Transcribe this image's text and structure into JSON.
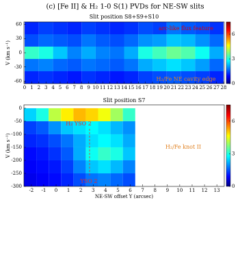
{
  "title": "(c) [Fe II] & H₂ 1-0 S(1) PVDs for NE-SW slits",
  "chart_data": [
    {
      "type": "heatmap",
      "title": "Slit position S8+S9+S10",
      "ylabel": "V (km s⁻¹)",
      "x": [
        1,
        3,
        5,
        7,
        9,
        11,
        13,
        15,
        17,
        19,
        21,
        23,
        25,
        27
      ],
      "y": [
        52,
        26,
        0,
        -26,
        -52
      ],
      "z": [
        [
          1.2,
          1.4,
          1.3,
          1.2,
          1.4,
          1.3,
          1.2,
          1.3,
          1.5,
          1.4,
          1.8,
          1.6,
          1.5,
          1.3
        ],
        [
          1.5,
          1.7,
          1.6,
          1.5,
          1.8,
          1.6,
          1.5,
          1.7,
          2.0,
          2.1,
          2.4,
          2.3,
          2.0,
          1.7
        ],
        [
          3.2,
          3.0,
          2.4,
          1.9,
          2.2,
          1.9,
          1.8,
          2.2,
          3.0,
          3.3,
          3.6,
          3.4,
          2.9,
          2.2
        ],
        [
          1.8,
          1.9,
          1.7,
          1.6,
          1.8,
          1.7,
          1.6,
          1.8,
          2.2,
          2.4,
          2.6,
          2.4,
          2.1,
          1.7
        ],
        [
          1.2,
          1.3,
          1.2,
          1.1,
          1.3,
          1.2,
          1.1,
          1.2,
          1.4,
          1.5,
          1.6,
          1.5,
          1.4,
          1.2
        ]
      ],
      "cell": [
        2,
        26
      ],
      "xlim": [
        -0.1,
        28.1
      ],
      "ylim": [
        -65,
        65
      ],
      "xticks": [
        0,
        1,
        2,
        3,
        4,
        5,
        6,
        7,
        8,
        9,
        10,
        11,
        12,
        13,
        14,
        15,
        16,
        17,
        18,
        19,
        20,
        21,
        22,
        23,
        24,
        25,
        26,
        27,
        28
      ],
      "yticks": [
        60,
        30,
        0,
        -30,
        -60
      ],
      "clim": [
        0,
        7.5
      ],
      "cticks": [
        0,
        3,
        6
      ],
      "annotations": [
        "arc-like flux feature",
        "H₂/Fe NE cavity edge"
      ]
    },
    {
      "type": "heatmap",
      "title": "Slit position S7",
      "ylabel": "V (km s⁻¹)",
      "xlabel": "NE-SW offset Y (arcsec)",
      "x": [
        -2.1,
        -1.1,
        -0.1,
        0.9,
        1.9,
        2.9,
        3.9,
        4.9,
        5.9
      ],
      "y": [
        -25,
        -75,
        -125,
        -175,
        -225,
        -275
      ],
      "z": [
        [
          2.5,
          3.0,
          4.2,
          4.8,
          5.2,
          5.0,
          4.6,
          4.0,
          3.2
        ],
        [
          1.4,
          1.6,
          2.0,
          2.4,
          2.6,
          2.8,
          2.6,
          2.3,
          2.0
        ],
        [
          1.2,
          1.3,
          1.5,
          1.8,
          2.2,
          2.6,
          2.8,
          2.6,
          2.2
        ],
        [
          1.0,
          1.1,
          1.3,
          1.6,
          2.2,
          2.9,
          3.2,
          3.0,
          2.4
        ],
        [
          0.9,
          1.0,
          1.1,
          1.4,
          1.9,
          2.4,
          2.6,
          2.3,
          1.9
        ],
        [
          0.8,
          0.9,
          1.0,
          1.2,
          1.5,
          1.8,
          1.9,
          1.7,
          1.5
        ]
      ],
      "cell": [
        1,
        50
      ],
      "xlim": [
        -2.6,
        13.6
      ],
      "ylim": [
        -300,
        13
      ],
      "xticks": [
        -2,
        -1,
        0,
        1,
        2,
        3,
        4,
        5,
        6,
        7,
        8,
        9,
        10,
        11,
        12,
        13
      ],
      "yticks": [
        0,
        -50,
        -100,
        -150,
        -200,
        -250,
        -300
      ],
      "clim": [
        0,
        7.5
      ],
      "cticks": [
        0,
        3,
        6
      ],
      "annotations": [
        "H₂ YSO 2",
        "H₂/Fe knot II",
        "YSO 2"
      ]
    }
  ]
}
